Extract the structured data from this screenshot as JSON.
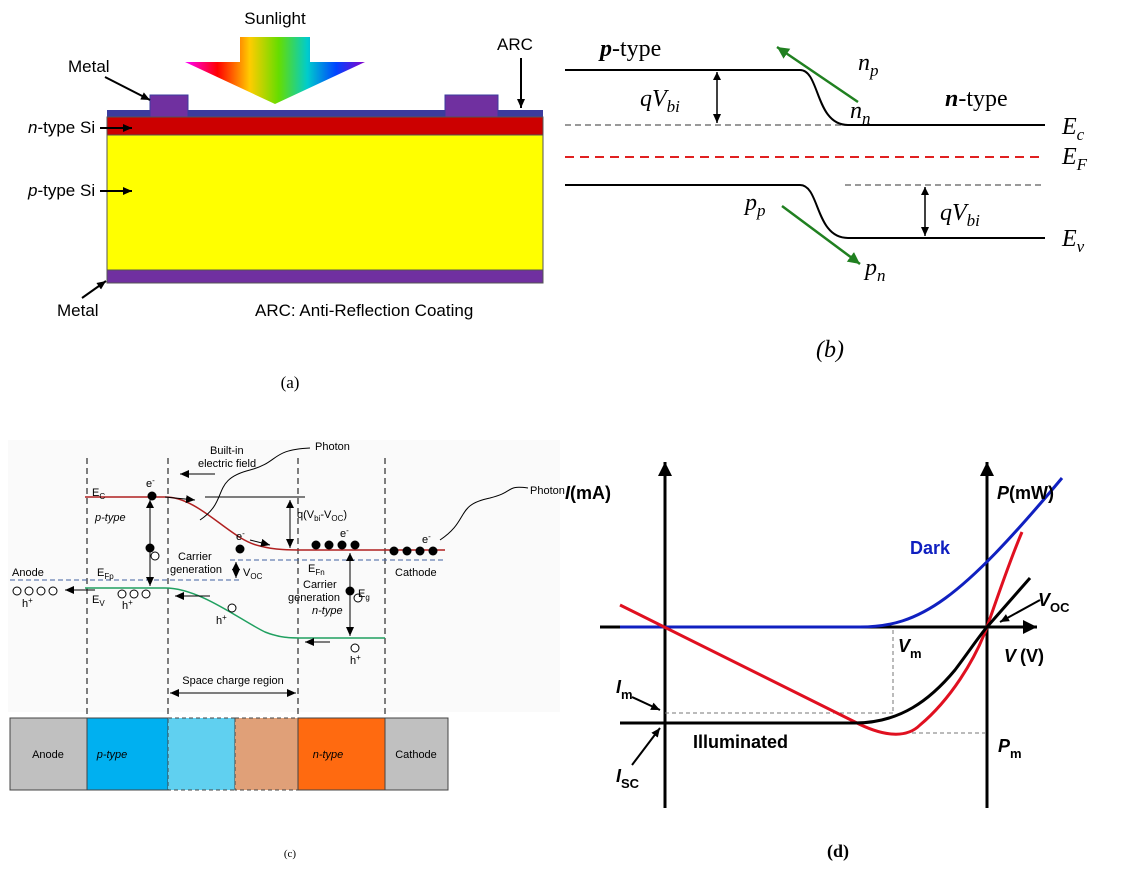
{
  "panel_a": {
    "title": "Sunlight",
    "metal_top": "Metal",
    "arc": "ARC",
    "n_si": {
      "n": "n",
      "rest": "-type Si"
    },
    "p_si": {
      "p": "p",
      "rest": "-type Si"
    },
    "metal_bottom": "Metal",
    "arc_note": "ARC: Anti-Reflection Coating",
    "caption": "(a)"
  },
  "panel_b": {
    "p_type": {
      "p": "p",
      "rest": "-type"
    },
    "n_type": {
      "n": "n",
      "rest": "-type"
    },
    "qvbi_left": {
      "main": "qV",
      "sub": "bi"
    },
    "qvbi_right": {
      "main": "qV",
      "sub": "bi"
    },
    "n_p": {
      "main": "n",
      "sub": "p"
    },
    "n_n": {
      "main": "n",
      "sub": "n"
    },
    "p_p": {
      "main": "p",
      "sub": "p"
    },
    "p_n": {
      "main": "p",
      "sub": "n"
    },
    "e_c": {
      "main": "E",
      "sub": "c"
    },
    "e_f": {
      "main": "E",
      "sub": "F"
    },
    "e_v": {
      "main": "E",
      "sub": "v"
    },
    "caption": "(b)"
  },
  "panel_c": {
    "built_in": "Built-in",
    "field": "electric field",
    "photon_1": "Photon",
    "photon_2": "Photon",
    "ec": {
      "main": "E",
      "sub": "C"
    },
    "electrons": [
      {
        "main": "e",
        "sup": "-"
      },
      {
        "main": "e",
        "sup": "-"
      },
      {
        "main": "e",
        "sup": "-"
      },
      {
        "main": "e",
        "sup": "-"
      }
    ],
    "p_type": "p-type",
    "q": {
      "a": "q(V",
      "b": "bi",
      "c": "-V",
      "d": "OC",
      "e": ")"
    },
    "carrier_1": "Carrier",
    "generation_1": "generation",
    "anode": "Anode",
    "efp": {
      "main": "E",
      "sub": "Fp"
    },
    "voc": {
      "main": "V",
      "sub": "OC"
    },
    "efn": {
      "main": "E",
      "sub": "Fn"
    },
    "cathode": "Cathode",
    "ev": {
      "main": "E",
      "sub": "V"
    },
    "holes": [
      {
        "main": "h",
        "sup": "+"
      },
      {
        "main": "h",
        "sup": "+"
      },
      {
        "main": "h",
        "sup": "+"
      },
      {
        "main": "h",
        "sup": "+"
      }
    ],
    "carrier_2": "Carrier",
    "generation_2": "generation",
    "eg": {
      "main": "E",
      "sub": "g"
    },
    "n_type": "n-type",
    "space_charge": "Space charge region",
    "bar": {
      "anode": "Anode",
      "p_type": "p-type",
      "n_type": "n-type",
      "cathode": "Cathode"
    },
    "caption": "(c)"
  },
  "panel_d": {
    "i_axis": {
      "main": "I",
      "rest": "(mA)"
    },
    "p_axis": {
      "main": "P",
      "rest": "(mW)"
    },
    "dark": "Dark",
    "voc": {
      "main": "V",
      "sub": "OC"
    },
    "vm": {
      "main": "V",
      "sub": "m"
    },
    "v_axis": {
      "main": "V",
      "rest": "(V)"
    },
    "im": {
      "main": "I",
      "sub": "m"
    },
    "pm": {
      "main": "P",
      "sub": "m"
    },
    "illuminated": "Illuminated",
    "isc": {
      "main": "I",
      "sub": "SC"
    },
    "caption": "(d)"
  }
}
